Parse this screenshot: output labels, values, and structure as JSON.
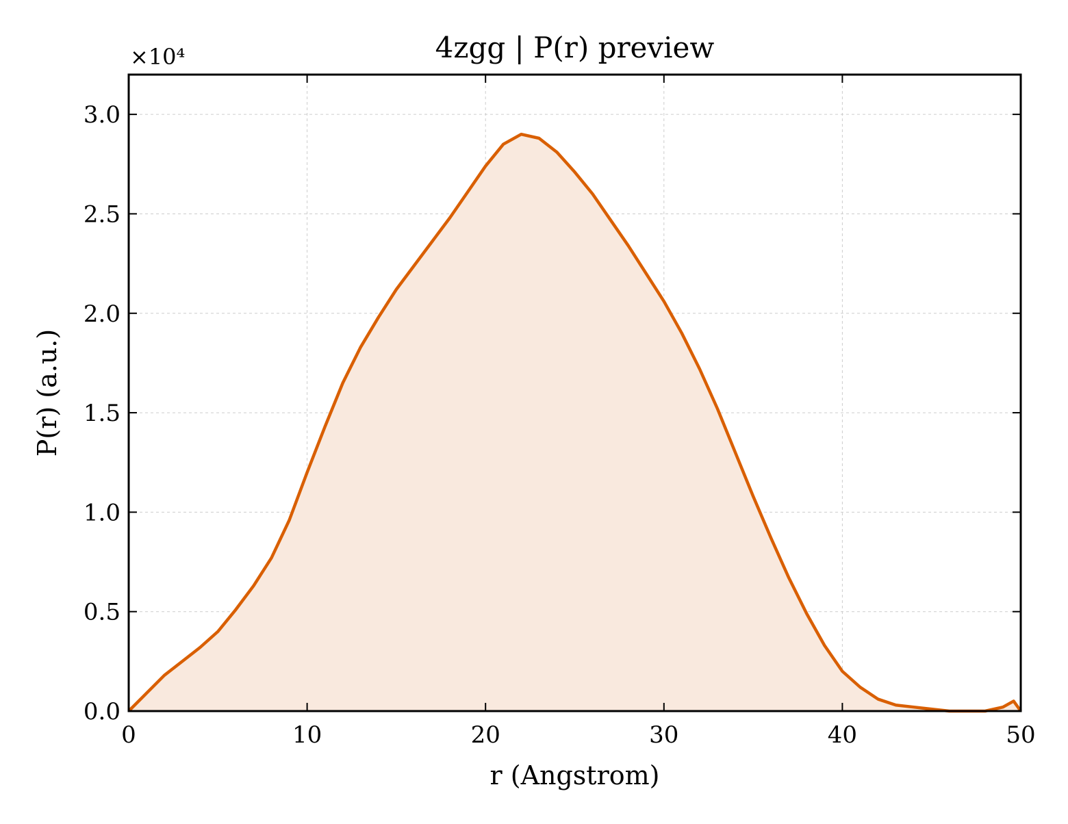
{
  "chart_data": {
    "type": "area",
    "title": "4zgg | P(r) preview",
    "xlabel": "r (Angstrom)",
    "ylabel": "P(r) (a.u.)",
    "y_offset_label": "×10⁴",
    "xlim": [
      0,
      50
    ],
    "ylim": [
      0,
      3.2
    ],
    "y_scale_factor": 10000,
    "grid": true,
    "legend": "none",
    "x_ticks": [
      "0",
      "10",
      "20",
      "30",
      "40",
      "50"
    ],
    "y_ticks": [
      "0.0",
      "0.5",
      "1.0",
      "1.5",
      "2.0",
      "2.5",
      "3.0"
    ],
    "x_tick_values": [
      0,
      10,
      20,
      30,
      40,
      50
    ],
    "y_tick_values": [
      0.0,
      0.5,
      1.0,
      1.5,
      2.0,
      2.5,
      3.0
    ],
    "colors": {
      "line": "#d95f02",
      "fill": "#f9e9de",
      "grid": "#cccccc",
      "axes": "#000000"
    },
    "series": [
      {
        "x": [
          0,
          1,
          2,
          3,
          4,
          5,
          6,
          7,
          8,
          9,
          10,
          11,
          12,
          13,
          14,
          15,
          16,
          17,
          18,
          19,
          20,
          21,
          22,
          23,
          24,
          25,
          26,
          27,
          28,
          29,
          30,
          31,
          32,
          33,
          34,
          35,
          36,
          37,
          38,
          39,
          40,
          41,
          42,
          43,
          44,
          45,
          46,
          47,
          48,
          49,
          49.6,
          50
        ],
        "y": [
          0.0,
          0.09,
          0.18,
          0.25,
          0.32,
          0.4,
          0.51,
          0.63,
          0.77,
          0.96,
          1.2,
          1.43,
          1.65,
          1.83,
          1.98,
          2.12,
          2.24,
          2.36,
          2.48,
          2.61,
          2.74,
          2.85,
          2.9,
          2.88,
          2.81,
          2.71,
          2.6,
          2.47,
          2.34,
          2.2,
          2.06,
          1.9,
          1.72,
          1.52,
          1.3,
          1.08,
          0.87,
          0.67,
          0.49,
          0.33,
          0.2,
          0.12,
          0.06,
          0.03,
          0.02,
          0.01,
          0.0,
          0.0,
          0.0,
          0.02,
          0.05,
          0.0
        ]
      }
    ]
  }
}
